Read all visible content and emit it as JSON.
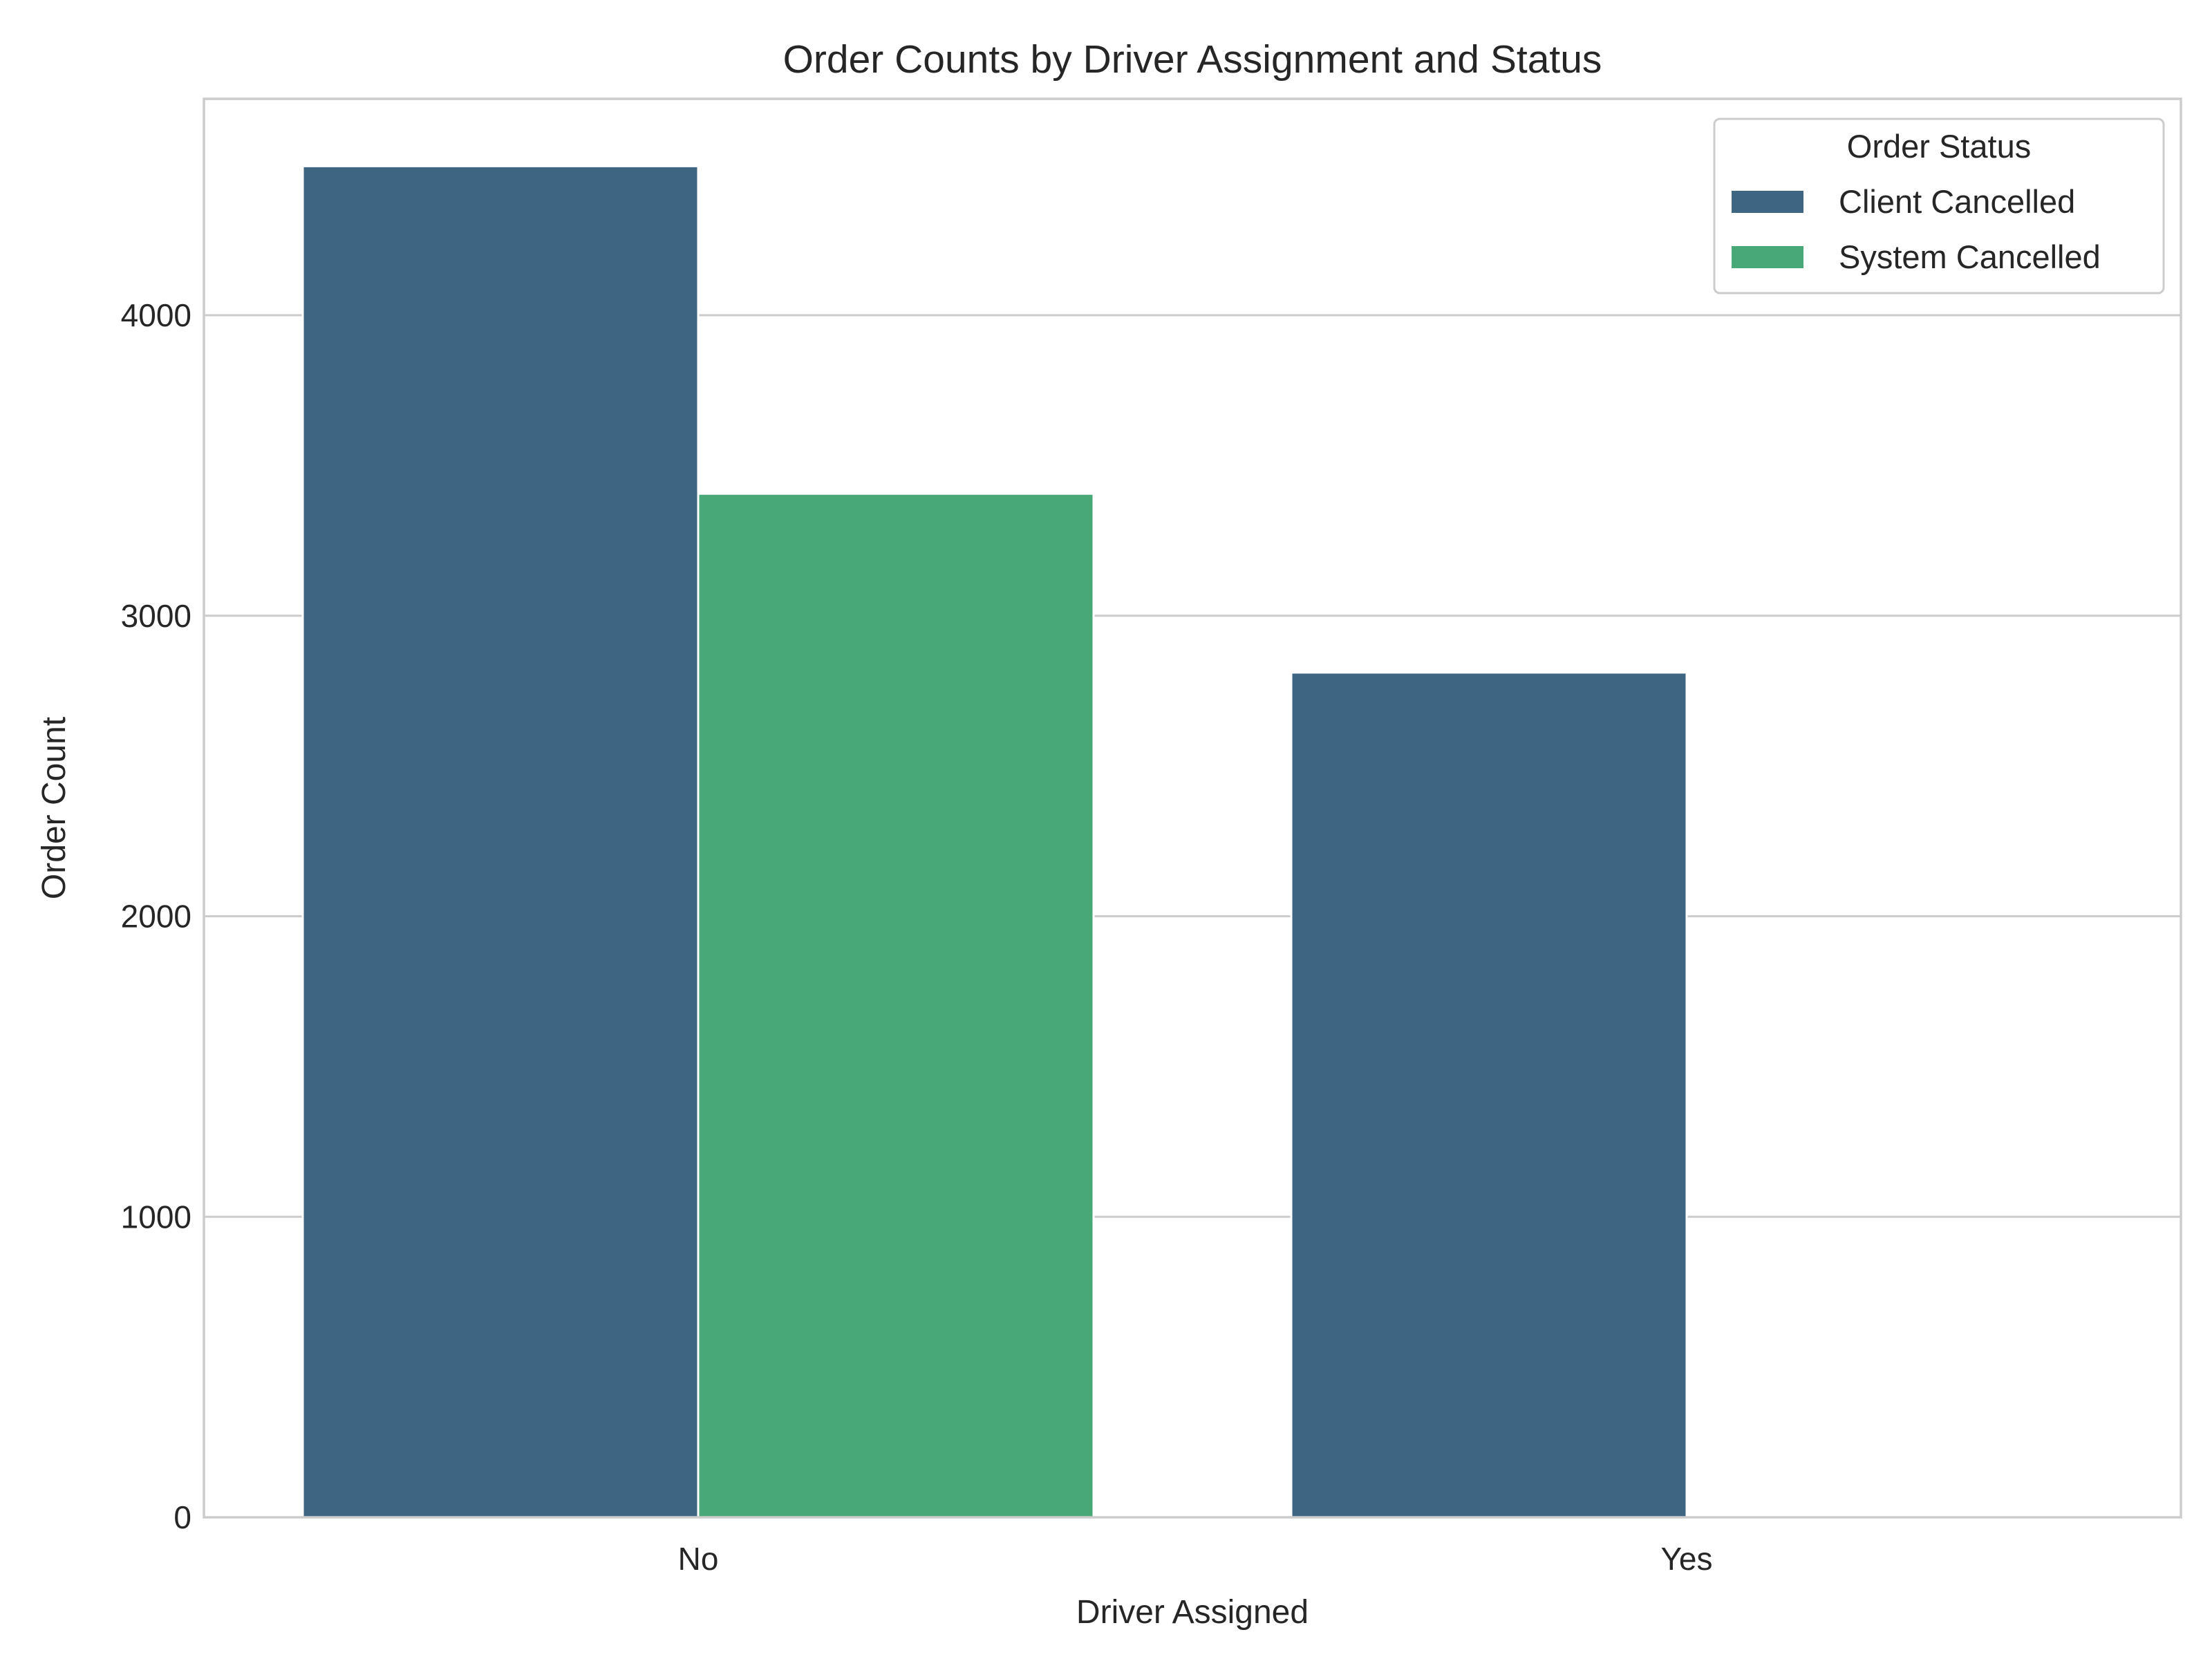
{
  "chart_data": {
    "type": "bar",
    "title": "Order Counts by Driver Assignment and Status",
    "xlabel": "Driver Assigned",
    "ylabel": "Order Count",
    "categories": [
      "No",
      "Yes"
    ],
    "series": [
      {
        "name": "Client Cancelled",
        "values": [
          4496,
          2811
        ],
        "color": "#3e6682"
      },
      {
        "name": "System Cancelled",
        "values": [
          3406,
          3
        ],
        "color": "#48a878"
      }
    ],
    "ylim": [
      0,
      4720
    ],
    "yticks": [
      0,
      1000,
      2000,
      3000,
      4000
    ],
    "grid": true,
    "legend": {
      "title": "Order Status",
      "placement": "top-right"
    }
  }
}
